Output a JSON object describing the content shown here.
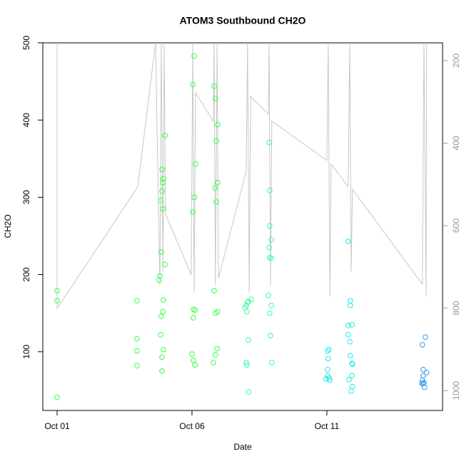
{
  "chart_data": {
    "type": "scatter",
    "title": "ATOM3 Southbound CH2O",
    "x_label": "Date",
    "y_label": "CH2O",
    "xlim": [
      0.47,
      15.29
    ],
    "xticks": [
      {
        "value": 1,
        "label": "Oct 01"
      },
      {
        "value": 6,
        "label": "Oct 06"
      },
      {
        "value": 11,
        "label": "Oct 11"
      }
    ],
    "ylim": [
      24,
      500
    ],
    "yticks": [
      100,
      200,
      300,
      400,
      500
    ],
    "y2lim": [
      1048,
      157
    ],
    "y2ticks": [
      200,
      400,
      600,
      800,
      1000
    ],
    "grid": false,
    "series": [
      {
        "style": "points",
        "color": "#33ff44",
        "x": [
          1.0,
          1.0,
          1.0,
          3.96,
          3.96,
          3.96,
          3.96,
          5.0,
          4.89,
          4.94,
          4.92,
          4.89,
          4.84,
          4.92,
          4.86,
          4.81,
          4.78,
          4.94,
          4.92,
          4.86,
          4.84,
          4.94,
          4.89,
          4.89,
          5.0,
          6.08,
          6.03,
          6.13,
          6.08,
          6.03,
          6.11,
          6.05,
          6.05,
          6.0,
          6.05,
          6.11,
          6.82,
          6.87,
          6.95,
          6.9,
          6.95,
          6.85,
          6.9,
          6.82,
          6.95,
          6.87,
          6.93,
          6.87,
          6.79
        ],
        "values": [
          179,
          166,
          41,
          166,
          117,
          101,
          82,
          380,
          336,
          324,
          319,
          308,
          296,
          285,
          229,
          198,
          193,
          167,
          152,
          146,
          122,
          103,
          93,
          75,
          213,
          483,
          446,
          343,
          300,
          281,
          154,
          155,
          144,
          97,
          89,
          83,
          444,
          428,
          394,
          373,
          319,
          312,
          294,
          179,
          152,
          150,
          104,
          96,
          86
        ]
      },
      {
        "style": "points",
        "color": "#33ffa0",
        "x": [
          8.2,
          8.06,
          8.01,
          7.96,
          8.04,
          8.09,
          8.01,
          8.04,
          8.09,
          8.09,
          8.86,
          8.88,
          8.88,
          8.94,
          8.86,
          8.94,
          8.88,
          8.83,
          8.94,
          8.88,
          8.91,
          8.96
        ],
        "values": [
          168,
          164,
          160,
          157,
          152,
          115,
          86,
          83,
          48,
          165,
          371,
          309,
          263,
          245,
          235,
          221,
          222,
          173,
          160,
          150,
          121,
          86
        ]
      },
      {
        "style": "points",
        "color": "#22e8e8",
        "x": [
          11.08,
          11.03,
          11.05,
          11.03,
          11.03,
          11.08,
          11.11,
          10.97,
          11.79,
          11.87,
          11.87,
          11.79,
          11.93,
          11.79,
          11.85,
          11.87,
          11.93,
          11.95,
          11.93,
          11.82,
          11.95,
          11.9
        ],
        "values": [
          103,
          101,
          91,
          77,
          69,
          66,
          63,
          65,
          243,
          166,
          160,
          134,
          135,
          122,
          113,
          95,
          85,
          84,
          69,
          64,
          55,
          49
        ]
      },
      {
        "style": "points",
        "color": "#2a9df0",
        "x": [
          14.65,
          14.54,
          14.57,
          14.7,
          14.57,
          14.54,
          14.57,
          14.6,
          14.62,
          14.52
        ],
        "values": [
          119,
          109,
          77,
          73,
          69,
          63,
          59,
          60,
          54,
          59
        ]
      },
      {
        "style": "line",
        "axis": "y2",
        "color": "#c8c8c8",
        "x": [
          1.0,
          1.0,
          3.99,
          4.65,
          4.81,
          4.86,
          4.92,
          4.97,
          5.02,
          5.97,
          6.03,
          6.08,
          6.13,
          6.79,
          6.82,
          6.87,
          6.93,
          6.98,
          8.01,
          8.06,
          8.12,
          8.17,
          8.83,
          8.86,
          8.91,
          8.96,
          11.0,
          11.05,
          11.11,
          11.16,
          11.79,
          11.85,
          11.9,
          11.95,
          14.54,
          14.6,
          14.68,
          14.7
        ],
        "values": [
          157,
          801,
          506,
          157,
          745,
          157,
          711,
          157,
          572,
          719,
          157,
          763,
          278,
          347,
          157,
          745,
          157,
          728,
          468,
          157,
          763,
          287,
          330,
          157,
          745,
          347,
          442,
          157,
          771,
          451,
          506,
          157,
          711,
          512,
          742,
          157,
          771,
          157
        ]
      }
    ]
  }
}
